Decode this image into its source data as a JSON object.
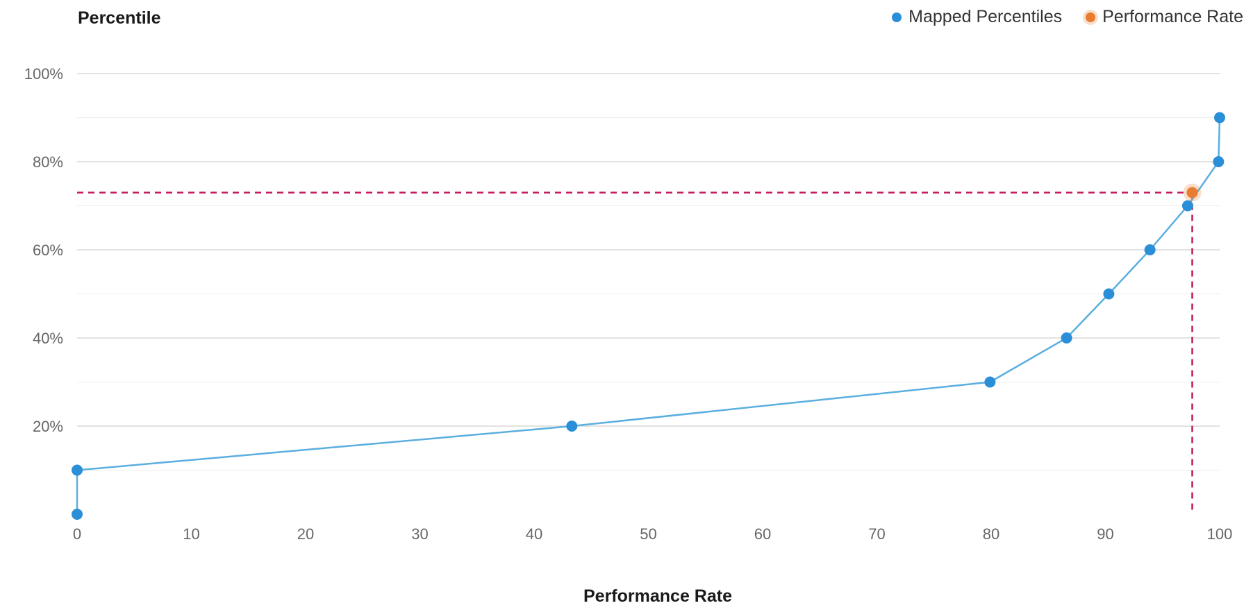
{
  "chart_data": {
    "type": "line",
    "ylabel": "Percentile",
    "xlabel": "Performance Rate",
    "xlim": [
      0,
      100
    ],
    "ylim": [
      0,
      100
    ],
    "x_ticks": [
      "0",
      "10",
      "20",
      "30",
      "40",
      "50",
      "60",
      "70",
      "80",
      "90",
      "100"
    ],
    "x_tick_values": [
      0,
      10,
      20,
      30,
      40,
      50,
      60,
      70,
      80,
      90,
      100
    ],
    "y_ticks": [
      "20%",
      "40%",
      "60%",
      "80%",
      "100%"
    ],
    "y_tick_values": [
      20,
      40,
      60,
      80,
      100
    ],
    "grid": true,
    "legend_position": "top-right",
    "series": [
      {
        "name": "Mapped Percentiles",
        "color": "#2b8fd8",
        "points": [
          {
            "x": 0,
            "y": 0
          },
          {
            "x": 0,
            "y": 10
          },
          {
            "x": 43.3,
            "y": 20
          },
          {
            "x": 79.9,
            "y": 30
          },
          {
            "x": 86.6,
            "y": 40
          },
          {
            "x": 90.3,
            "y": 50
          },
          {
            "x": 93.9,
            "y": 60
          },
          {
            "x": 97.2,
            "y": 70
          },
          {
            "x": 99.9,
            "y": 80
          },
          {
            "x": 100,
            "y": 90
          }
        ]
      },
      {
        "name": "Performance Rate",
        "color": "#e87d31",
        "points": [
          {
            "x": 97.6,
            "y": 73
          }
        ]
      }
    ],
    "reference_line_color": "#c2185b"
  }
}
